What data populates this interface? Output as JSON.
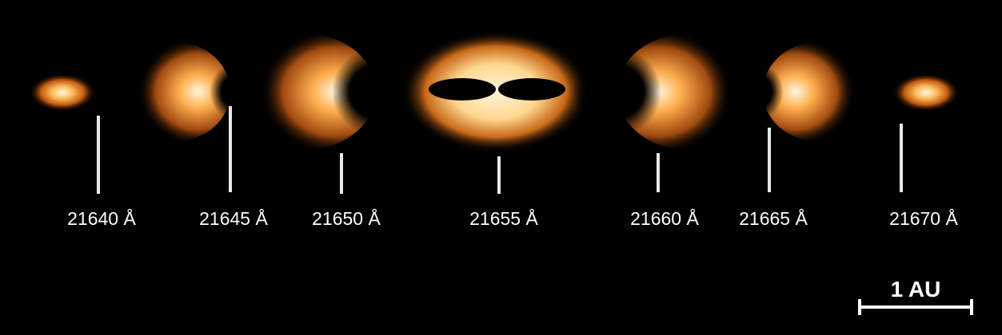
{
  "spectral_labels": [
    "21640 Å",
    "21645 Å",
    "21650 Å",
    "21655 Å",
    "21660 Å",
    "21665 Å",
    "21670 Å"
  ],
  "scale_bar": {
    "label": "1 AU"
  }
}
